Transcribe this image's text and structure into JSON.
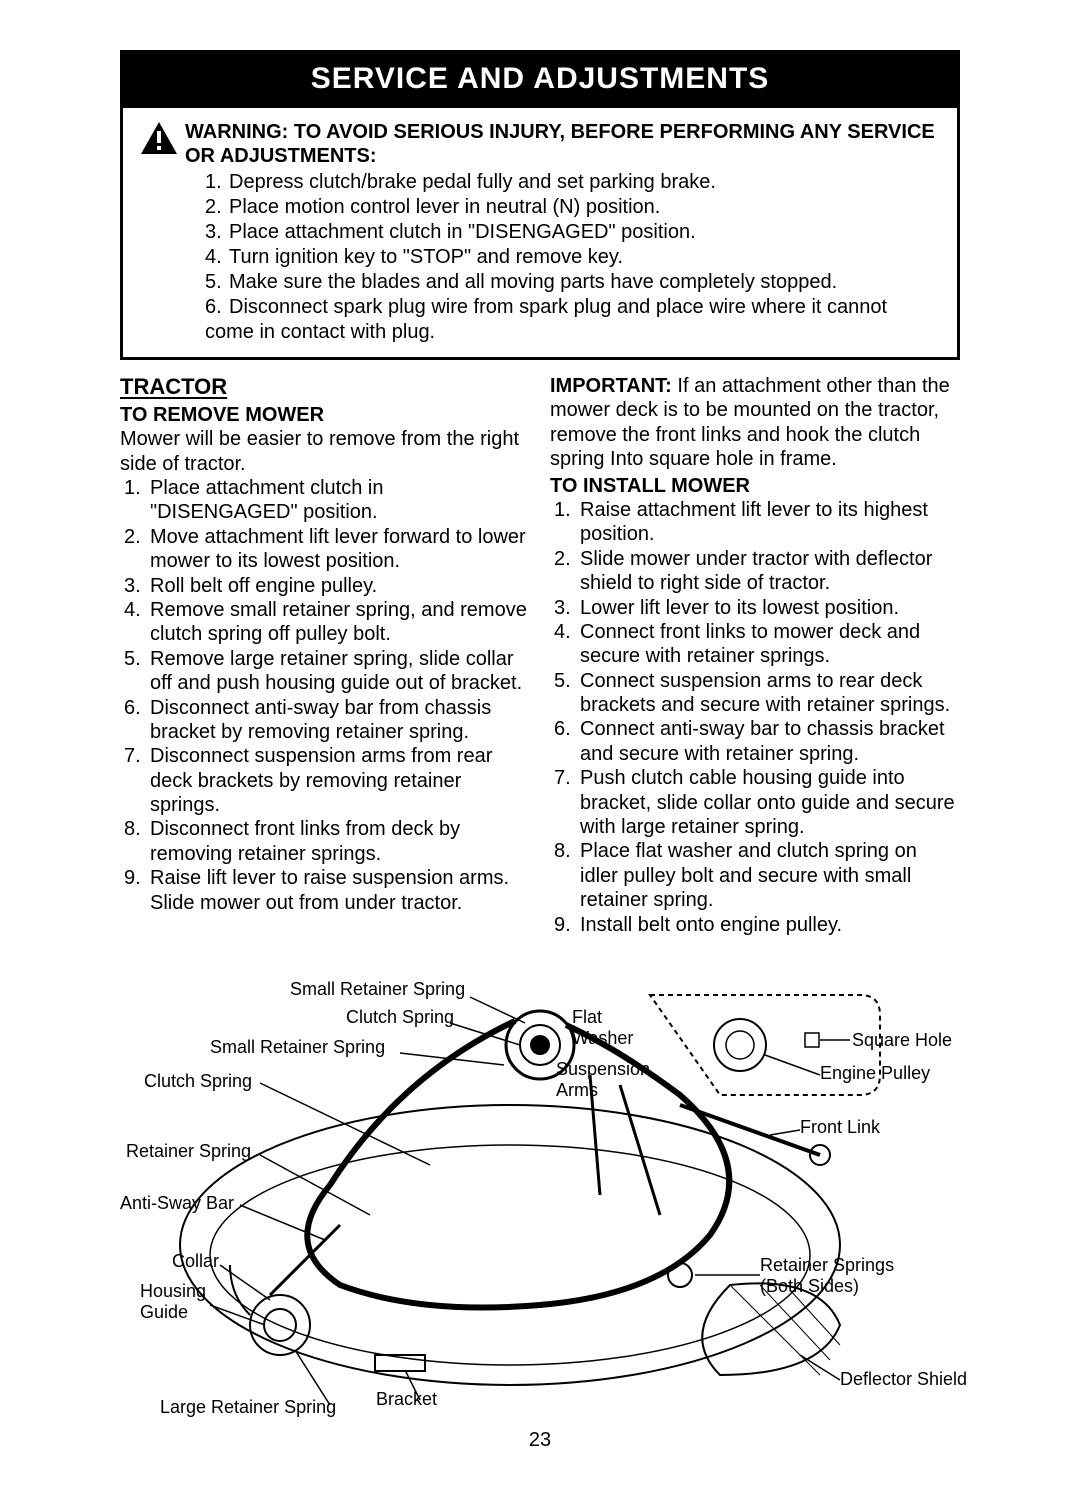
{
  "header": "SERVICE AND ADJUSTMENTS",
  "warning": {
    "heading": "WARNING: TO AVOID SERIOUS INJURY, BEFORE PERFORMING ANY SERVICE OR ADJUSTMENTS:",
    "items": [
      "Depress clutch/brake pedal fully and set parking brake.",
      "Place motion control lever in neutral (N) position.",
      "Place attachment clutch in \"DISENGAGED\" position.",
      "Turn ignition key to \"STOP\" and remove key.",
      "Make sure the blades and all moving parts have completely stopped.",
      "Disconnect spark plug wire from spark plug and place wire where it cannot come in contact with plug."
    ]
  },
  "left": {
    "h1": "TRACTOR",
    "h2": "TO REMOVE MOWER",
    "intro": "Mower will be easier to remove from the right side of tractor.",
    "items": [
      "Place attachment clutch in \"DISENGAGED\" position.",
      "Move attachment lift lever forward to lower mower to its lowest position.",
      "Roll belt off engine pulley.",
      "Remove small retainer spring, and remove clutch spring off pulley bolt.",
      "Remove large retainer spring, slide collar off and push housing guide out of bracket.",
      "Disconnect anti-sway bar from chassis bracket by removing retainer spring.",
      "Disconnect suspension arms from rear deck brackets by removing retainer springs.",
      "Disconnect front links from deck by removing retainer springs.",
      "Raise lift lever to raise suspension arms. Slide mower out from under tractor."
    ]
  },
  "right": {
    "important_label": "IMPORTANT:",
    "important_text": " If an attachment other than the mower deck is to be mounted on the tractor, remove the front links and hook the clutch spring Into square hole in frame.",
    "h2": "TO INSTALL MOWER",
    "items": [
      "Raise attachment lift lever to its highest position.",
      "Slide mower under tractor with deflector shield to right side of tractor.",
      "Lower lift lever to its lowest position.",
      "Connect front links to mower deck and secure with retainer springs.",
      "Connect suspension arms to rear deck brackets and secure with retainer springs.",
      "Connect anti-sway bar to chassis bracket and secure with retainer spring.",
      "Push clutch cable housing guide into bracket, slide collar onto guide and secure with large retainer spring.",
      "Place flat washer and clutch spring on idler pulley bolt and secure with small retainer spring.",
      "Install belt onto engine pulley."
    ]
  },
  "diagram": {
    "labels": {
      "small_retainer_spring_top": "Small Retainer Spring",
      "clutch_spring_top": "Clutch Spring",
      "small_retainer_spring_left": "Small Retainer Spring",
      "clutch_spring_left": "Clutch Spring",
      "retainer_spring_left": "Retainer Spring",
      "anti_sway_bar": "Anti-Sway Bar",
      "collar": "Collar",
      "housing_guide_l1": "Housing",
      "housing_guide_l2": "Guide",
      "large_retainer_spring": "Large Retainer Spring",
      "bracket": "Bracket",
      "flat_washer_l1": "Flat",
      "flat_washer_l2": "Washer",
      "suspension_arms_l1": "Suspension",
      "suspension_arms_l2": "Arms",
      "square_hole": "Square Hole",
      "engine_pulley": "Engine Pulley",
      "front_link": "Front Link",
      "retainer_springs_l1": "Retainer Springs",
      "retainer_springs_l2": "(Both Sides)",
      "deflector_shield": "Deflector Shield"
    }
  },
  "page_number": "23"
}
